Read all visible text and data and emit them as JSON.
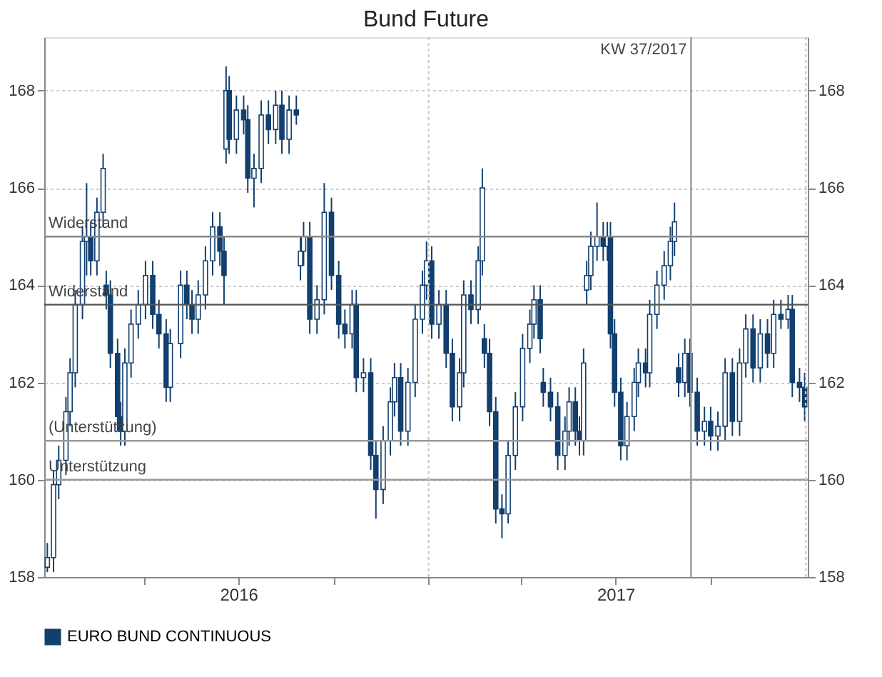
{
  "chart_data": {
    "type": "candlestick",
    "title": "Bund Future",
    "x": [
      "2015-12-29",
      "2016-01-04",
      "2016-01-09",
      "2016-01-16",
      "2016-01-20",
      "2016-01-25",
      "2016-02-01",
      "2016-02-05",
      "2016-02-09",
      "2016-02-15",
      "2016-02-21",
      "2016-02-24",
      "2016-02-28",
      "2016-03-06",
      "2016-03-09",
      "2016-03-13",
      "2016-03-19",
      "2016-03-26",
      "2016-04-02",
      "2016-04-09",
      "2016-04-15",
      "2016-04-22",
      "2016-04-26",
      "2016-05-06",
      "2016-05-12",
      "2016-05-17",
      "2016-05-23",
      "2016-05-30",
      "2016-06-06",
      "2016-06-13",
      "2016-06-17",
      "2016-06-19",
      "2016-06-22",
      "2016-06-29",
      "2016-07-06",
      "2016-07-10",
      "2016-07-16",
      "2016-07-23",
      "2016-07-30",
      "2016-08-06",
      "2016-08-12",
      "2016-08-19",
      "2016-08-26",
      "2016-08-30",
      "2016-09-02",
      "2016-09-08",
      "2016-09-15",
      "2016-09-22",
      "2016-09-29",
      "2016-10-06",
      "2016-10-12",
      "2016-10-19",
      "2016-10-23",
      "2016-10-30",
      "2016-11-06",
      "2016-11-11",
      "2016-11-18",
      "2016-11-25",
      "2016-11-29",
      "2016-12-05",
      "2016-12-12",
      "2016-12-19",
      "2016-12-26",
      "2016-12-30",
      "2017-01-04",
      "2017-01-11",
      "2017-01-18",
      "2017-01-24",
      "2017-01-31",
      "2017-02-04",
      "2017-02-11",
      "2017-02-18",
      "2017-02-22",
      "2017-02-24",
      "2017-03-01",
      "2017-03-07",
      "2017-03-13",
      "2017-03-19",
      "2017-03-26",
      "2017-04-02",
      "2017-04-09",
      "2017-04-13",
      "2017-04-19",
      "2017-04-22",
      "2017-04-29",
      "2017-05-06",
      "2017-05-13",
      "2017-05-17",
      "2017-05-23",
      "2017-05-27",
      "2017-05-31",
      "2017-06-03",
      "2017-06-07",
      "2017-06-13",
      "2017-06-19",
      "2017-06-23",
      "2017-06-26",
      "2017-06-30",
      "2017-07-06",
      "2017-07-12",
      "2017-07-19",
      "2017-07-23",
      "2017-07-30",
      "2017-08-03",
      "2017-08-10",
      "2017-08-17",
      "2017-08-23",
      "2017-08-27",
      "2017-08-31",
      "2017-09-06",
      "2017-09-11",
      "2017-09-18",
      "2017-09-25",
      "2017-10-01",
      "2017-10-08",
      "2017-10-15",
      "2017-10-22",
      "2017-10-29",
      "2017-11-04",
      "2017-11-11",
      "2017-11-18",
      "2017-11-25",
      "2017-12-01",
      "2017-12-08",
      "2017-12-15",
      "2017-12-19",
      "2017-12-26",
      "2017-12-31"
    ],
    "series": [
      {
        "name": "EURO BUND CONTINUOUS",
        "color": "#123f6e",
        "ohlc": [
          [
            158.2,
            158.7,
            158.1,
            158.4
          ],
          [
            158.4,
            160.2,
            158.1,
            159.9
          ],
          [
            159.9,
            160.7,
            159.6,
            160.4
          ],
          [
            160.4,
            161.7,
            160.1,
            161.4
          ],
          [
            161.4,
            162.5,
            161.1,
            162.2
          ],
          [
            162.2,
            163.9,
            161.9,
            163.6
          ],
          [
            163.6,
            165.2,
            163.3,
            164.9
          ],
          [
            164.9,
            166.1,
            164.2,
            165.0
          ],
          [
            165.0,
            165.3,
            164.2,
            164.5
          ],
          [
            164.5,
            165.8,
            164.2,
            165.5
          ],
          [
            165.5,
            166.7,
            165.2,
            166.4
          ],
          [
            164.0,
            164.3,
            163.5,
            163.8
          ],
          [
            163.8,
            164.1,
            162.3,
            162.6
          ],
          [
            162.6,
            162.9,
            161.0,
            161.3
          ],
          [
            161.3,
            161.6,
            160.7,
            161.0
          ],
          [
            161.0,
            162.7,
            160.7,
            162.4
          ],
          [
            162.4,
            163.5,
            162.1,
            163.2
          ],
          [
            163.2,
            163.9,
            162.9,
            163.6
          ],
          [
            163.6,
            164.5,
            163.3,
            164.2
          ],
          [
            164.2,
            164.5,
            163.1,
            163.4
          ],
          [
            163.4,
            163.7,
            162.7,
            163.0
          ],
          [
            163.0,
            163.3,
            161.6,
            161.9
          ],
          [
            161.9,
            163.1,
            161.6,
            162.8
          ],
          [
            162.8,
            164.3,
            162.5,
            164.0
          ],
          [
            164.0,
            164.3,
            163.3,
            163.6
          ],
          [
            163.6,
            163.9,
            163.0,
            163.3
          ],
          [
            163.3,
            164.1,
            163.0,
            163.8
          ],
          [
            163.8,
            164.8,
            163.5,
            164.5
          ],
          [
            164.5,
            165.5,
            164.2,
            165.2
          ],
          [
            165.2,
            165.5,
            164.4,
            164.7
          ],
          [
            164.7,
            165.0,
            163.6,
            164.2
          ],
          [
            166.8,
            168.5,
            166.5,
            168.0
          ],
          [
            168.0,
            168.3,
            166.7,
            167.0
          ],
          [
            167.0,
            167.9,
            166.7,
            167.6
          ],
          [
            167.6,
            167.9,
            167.1,
            167.4
          ],
          [
            167.4,
            167.7,
            165.9,
            166.2
          ],
          [
            166.2,
            166.7,
            165.6,
            166.4
          ],
          [
            166.4,
            167.8,
            166.1,
            167.5
          ],
          [
            167.5,
            167.8,
            166.9,
            167.2
          ],
          [
            167.2,
            168.0,
            166.9,
            167.7
          ],
          [
            167.7,
            168.0,
            166.7,
            167.0
          ],
          [
            167.0,
            167.9,
            166.7,
            167.6
          ],
          [
            167.6,
            167.9,
            167.3,
            167.5
          ],
          [
            164.4,
            165.0,
            164.1,
            164.7
          ],
          [
            164.7,
            165.3,
            164.4,
            165.0
          ],
          [
            165.0,
            165.3,
            163.0,
            163.3
          ],
          [
            163.3,
            164.0,
            163.0,
            163.7
          ],
          [
            163.7,
            166.1,
            163.4,
            165.5
          ],
          [
            165.5,
            165.8,
            163.9,
            164.2
          ],
          [
            164.2,
            164.5,
            162.9,
            163.2
          ],
          [
            163.2,
            163.5,
            162.7,
            163.0
          ],
          [
            163.0,
            163.9,
            162.7,
            163.6
          ],
          [
            163.6,
            163.9,
            161.8,
            162.1
          ],
          [
            162.1,
            162.5,
            161.8,
            162.2
          ],
          [
            162.2,
            162.5,
            160.2,
            160.5
          ],
          [
            160.5,
            160.8,
            159.2,
            159.8
          ],
          [
            159.8,
            161.1,
            159.5,
            160.8
          ],
          [
            160.8,
            161.9,
            160.5,
            161.6
          ],
          [
            161.6,
            162.4,
            161.3,
            162.1
          ],
          [
            162.1,
            162.4,
            160.7,
            161.0
          ],
          [
            161.0,
            162.3,
            160.7,
            162.0
          ],
          [
            162.0,
            163.6,
            161.7,
            163.3
          ],
          [
            163.3,
            164.3,
            163.0,
            164.0
          ],
          [
            164.0,
            164.9,
            163.7,
            164.5
          ],
          [
            164.5,
            164.8,
            162.9,
            163.2
          ],
          [
            163.2,
            163.9,
            162.9,
            163.6
          ],
          [
            163.6,
            163.9,
            162.3,
            162.6
          ],
          [
            162.6,
            162.9,
            161.2,
            161.5
          ],
          [
            161.5,
            162.5,
            161.2,
            162.2
          ],
          [
            162.2,
            164.1,
            161.9,
            163.8
          ],
          [
            163.8,
            164.1,
            163.2,
            163.5
          ],
          [
            163.5,
            164.8,
            163.2,
            164.5
          ],
          [
            164.5,
            166.4,
            164.2,
            166.0
          ],
          [
            162.9,
            163.2,
            162.3,
            162.6
          ],
          [
            162.6,
            162.9,
            161.1,
            161.4
          ],
          [
            161.4,
            161.7,
            159.1,
            159.4
          ],
          [
            159.4,
            159.7,
            158.8,
            159.3
          ],
          [
            159.3,
            160.8,
            159.1,
            160.5
          ],
          [
            160.5,
            161.8,
            160.2,
            161.5
          ],
          [
            161.5,
            163.0,
            161.2,
            162.7
          ],
          [
            162.7,
            163.5,
            162.4,
            163.2
          ],
          [
            163.2,
            164.0,
            162.9,
            163.7
          ],
          [
            163.7,
            164.0,
            162.6,
            162.9
          ],
          [
            162.0,
            162.3,
            161.5,
            161.8
          ],
          [
            161.8,
            162.1,
            161.2,
            161.5
          ],
          [
            161.5,
            161.8,
            160.2,
            160.5
          ],
          [
            160.5,
            161.3,
            160.2,
            161.0
          ],
          [
            161.0,
            161.9,
            160.7,
            161.6
          ],
          [
            161.6,
            161.9,
            160.7,
            161.0
          ],
          [
            161.0,
            161.3,
            160.5,
            160.8
          ],
          [
            160.8,
            162.7,
            160.5,
            162.4
          ],
          [
            163.9,
            164.5,
            163.6,
            164.2
          ],
          [
            164.2,
            165.1,
            163.9,
            164.8
          ],
          [
            164.8,
            165.7,
            164.5,
            165.0
          ],
          [
            165.0,
            165.3,
            164.5,
            164.8
          ],
          [
            164.8,
            165.3,
            164.5,
            165.0
          ],
          [
            165.0,
            165.3,
            162.7,
            163.0
          ],
          [
            163.0,
            163.3,
            161.5,
            161.8
          ],
          [
            161.8,
            162.1,
            160.4,
            160.7
          ],
          [
            160.7,
            161.6,
            160.4,
            161.3
          ],
          [
            161.3,
            162.3,
            161.0,
            162.0
          ],
          [
            162.0,
            162.7,
            161.7,
            162.4
          ],
          [
            162.4,
            162.7,
            161.9,
            162.2
          ],
          [
            162.2,
            163.7,
            161.9,
            163.4
          ],
          [
            163.4,
            164.3,
            163.1,
            164.0
          ],
          [
            164.0,
            164.7,
            163.7,
            164.4
          ],
          [
            164.4,
            165.2,
            164.1,
            164.9
          ],
          [
            164.9,
            165.7,
            164.6,
            165.3
          ],
          [
            162.3,
            162.6,
            161.7,
            162.0
          ],
          [
            162.0,
            162.9,
            161.7,
            162.6
          ],
          [
            162.6,
            162.9,
            161.5,
            161.8
          ],
          [
            161.8,
            162.1,
            160.7,
            161.0
          ],
          [
            161.0,
            161.5,
            160.7,
            161.2
          ],
          [
            161.2,
            161.5,
            160.6,
            160.9
          ],
          [
            160.9,
            161.4,
            160.6,
            161.1
          ],
          [
            161.1,
            162.5,
            160.8,
            162.2
          ],
          [
            162.2,
            162.5,
            160.9,
            161.2
          ],
          [
            161.2,
            162.7,
            160.9,
            162.4
          ],
          [
            162.4,
            163.4,
            162.1,
            163.1
          ],
          [
            163.1,
            163.4,
            162.0,
            162.3
          ],
          [
            162.3,
            163.3,
            162.0,
            163.0
          ],
          [
            163.0,
            163.3,
            162.3,
            162.6
          ],
          [
            162.6,
            163.7,
            162.3,
            163.4
          ],
          [
            163.4,
            163.7,
            163.1,
            163.3
          ],
          [
            163.3,
            163.8,
            163.1,
            163.5
          ],
          [
            163.5,
            163.8,
            161.7,
            162.0
          ],
          [
            162.0,
            162.3,
            161.6,
            161.9
          ],
          [
            161.9,
            162.2,
            161.2,
            161.5
          ]
        ]
      }
    ],
    "xlim": [
      "2015-12-26",
      "2018-01-03"
    ],
    "xticks": [
      {
        "value": "2016-04-01",
        "label": null
      },
      {
        "value": "2016-07-01",
        "label": "2016"
      },
      {
        "value": "2016-10-01",
        "label": null
      },
      {
        "value": "2017-01-01",
        "label": null
      },
      {
        "value": "2017-04-01",
        "label": null
      },
      {
        "value": "2017-07-01",
        "label": "2017"
      },
      {
        "value": "2017-10-01",
        "label": null
      }
    ],
    "ylim": [
      158,
      169.1
    ],
    "yticks": [
      158,
      160,
      162,
      164,
      166,
      168
    ],
    "y2lim": [
      158,
      169.1
    ],
    "y2ticks": [
      158,
      160,
      162,
      164,
      166,
      168
    ],
    "ref_lines": [
      {
        "axis": "y",
        "value": 165,
        "label": "Widerstand",
        "color": "#888888"
      },
      {
        "axis": "y",
        "value": 163.6,
        "label": "Widerstand",
        "color": "#555555"
      },
      {
        "axis": "y",
        "value": 160.8,
        "label": "(Unterstützung)",
        "color": "#999999"
      },
      {
        "axis": "y",
        "value": 160,
        "label": "Unterstützung",
        "color": "#999999"
      },
      {
        "axis": "x",
        "value": "2017-09-12",
        "label": "KW 37/2017",
        "color": "#999999"
      },
      {
        "axis": "x",
        "value": "2017-01-01",
        "label": null,
        "color": "#cccccc",
        "line_style": "dotted"
      },
      {
        "axis": "x",
        "value": "2018-01-01",
        "label": null,
        "color": "#cccccc",
        "line_style": "dotted"
      }
    ],
    "grid": "y",
    "legend": "bottom"
  }
}
